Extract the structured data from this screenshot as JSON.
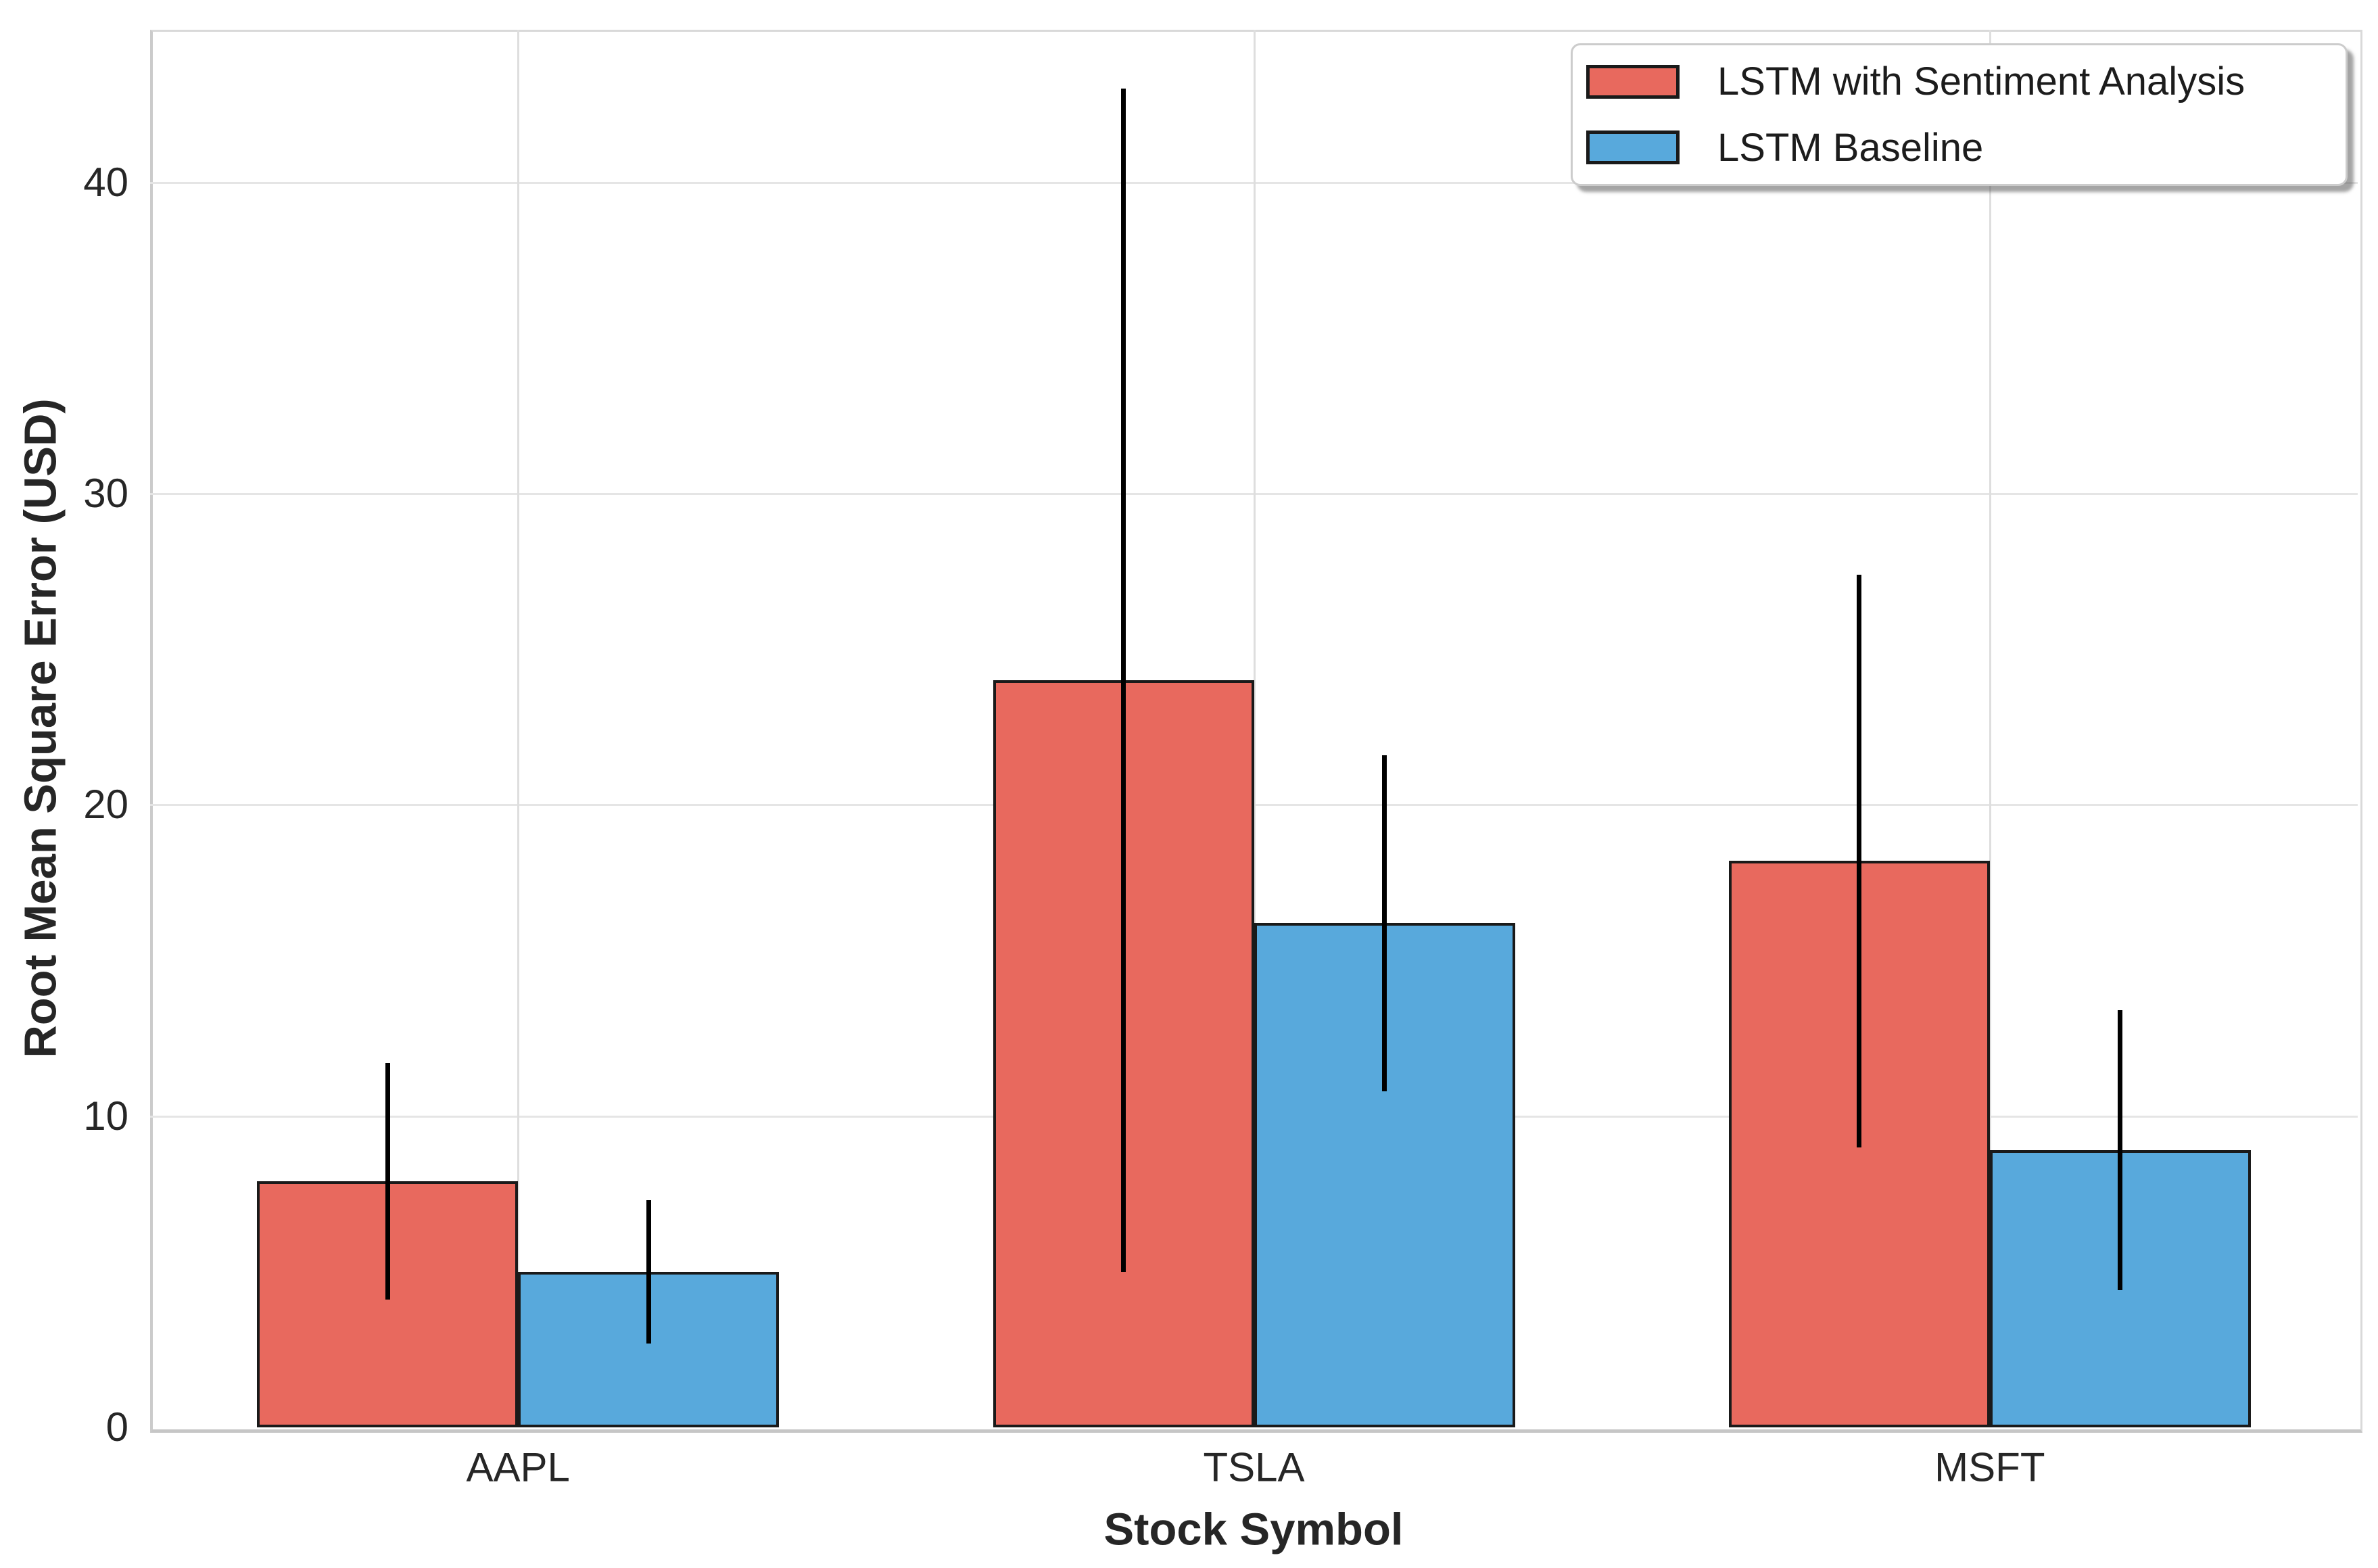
{
  "chart_data": {
    "type": "bar",
    "categories": [
      "AAPL",
      "TSLA",
      "MSFT"
    ],
    "series": [
      {
        "name": "LSTM with Sentiment Analysis",
        "color": "#E8695E",
        "values": [
          7.9,
          24.0,
          18.2
        ],
        "errors": [
          3.8,
          19.0,
          9.2
        ]
      },
      {
        "name": "LSTM Baseline",
        "color": "#58A9DC",
        "values": [
          5.0,
          16.2,
          8.9
        ],
        "errors": [
          2.3,
          5.4,
          4.5
        ]
      }
    ],
    "title": "",
    "xlabel": "Stock Symbol",
    "ylabel": "Root Mean Square Error (USD)",
    "yticks": [
      0,
      10,
      20,
      30,
      40
    ],
    "ylim": [
      0,
      44.9
    ],
    "grid": true,
    "error_bar_color": "#000000",
    "bar_edge_color": "#1a1a1a",
    "legend_position": "upper right"
  }
}
